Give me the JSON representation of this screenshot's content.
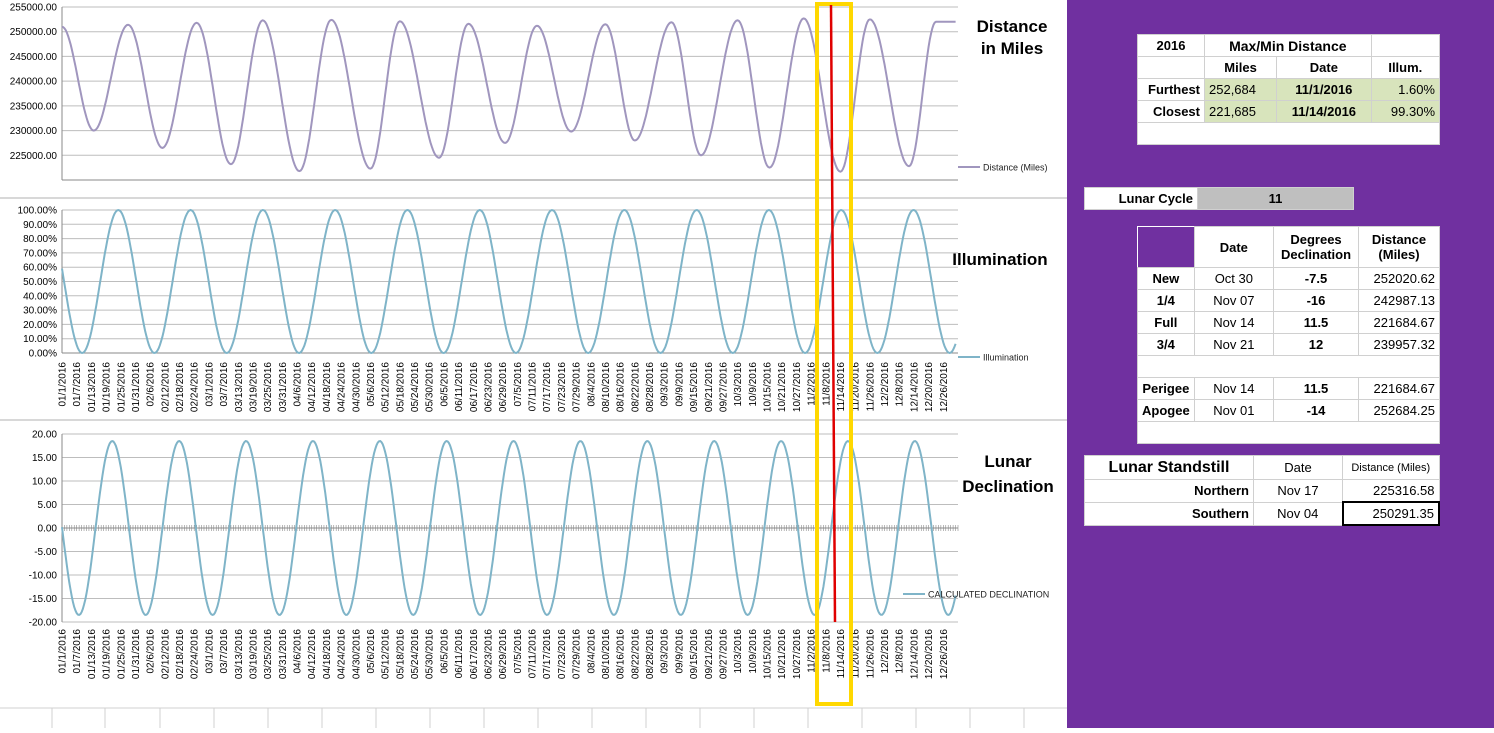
{
  "chart_data": [
    {
      "type": "line",
      "title": "Distance in Miles",
      "legend": "Distance (Miles)",
      "legend_position": "right",
      "ylim": [
        220000,
        255000
      ],
      "y_ticks": [
        "225000.00",
        "230000.00",
        "235000.00",
        "240000.00",
        "245000.00",
        "250000.00",
        "255000.00"
      ],
      "series": [
        {
          "name": "Distance (Miles)",
          "color": "#a096be",
          "period_days": 27.55,
          "x": [
            "01/1/2016",
            "01/14/2016",
            "01/28/2016",
            "02/11/2016",
            "02/25/2016",
            "03/10/2016",
            "03/23/2016",
            "04/7/2016",
            "04/20/2016",
            "05/6/2016",
            "05/18/2016",
            "06/3/2016",
            "06/15/2016",
            "06/30/2016",
            "07/13/2016",
            "07/27/2016",
            "08/10/2016",
            "08/22/2016",
            "09/6/2016",
            "09/18/2016",
            "10/3/2016",
            "10/16/2016",
            "10/30/2016",
            "11/14/2016",
            "11/26/2016",
            "12/12/2016",
            "12/23/2016"
          ],
          "values": [
            251000,
            230000,
            251400,
            226500,
            251800,
            223200,
            252300,
            221800,
            252400,
            222300,
            252100,
            224500,
            251600,
            227500,
            251200,
            229800,
            251500,
            228000,
            251900,
            225000,
            252300,
            222500,
            252684,
            221685,
            252500,
            222800,
            252000
          ]
        }
      ]
    },
    {
      "type": "line",
      "title": "Illumination",
      "legend": "Illumination",
      "legend_position": "right",
      "ylim": [
        0,
        1
      ],
      "y_ticks": [
        "0.00%",
        "10.00%",
        "20.00%",
        "30.00%",
        "40.00%",
        "50.00%",
        "60.00%",
        "70.00%",
        "80.00%",
        "90.00%",
        "100.00%"
      ],
      "series": [
        {
          "name": "Illumination",
          "color": "#7fb4c8",
          "period_days": 29.53,
          "full_moons": [
            "01/24/2016",
            "02/22/2016",
            "03/23/2016",
            "04/22/2016",
            "05/21/2016",
            "06/20/2016",
            "07/19/2016",
            "08/18/2016",
            "09/16/2016",
            "10/16/2016",
            "11/14/2016",
            "12/13/2016"
          ],
          "start_value": 0.6
        }
      ]
    },
    {
      "type": "line",
      "title": "Lunar Declination",
      "legend": "CALCULATED DECLINATION",
      "legend_position": "right",
      "ylim": [
        -20,
        20
      ],
      "y_ticks": [
        "-20.00",
        "-15.00",
        "-10.00",
        "-5.00",
        "0.00",
        "5.00",
        "10.00",
        "15.00",
        "20.00"
      ],
      "series": [
        {
          "name": "CALCULATED DECLINATION",
          "color": "#7fb4c8",
          "period_days": 27.32,
          "amplitude": 18.5,
          "start_value": 1.5
        }
      ]
    }
  ],
  "x_tick_labels": [
    "01/1/2016",
    "01/7/2016",
    "01/13/2016",
    "01/19/2016",
    "01/25/2016",
    "01/31/2016",
    "02/6/2016",
    "02/12/2016",
    "02/18/2016",
    "02/24/2016",
    "03/1/2016",
    "03/7/2016",
    "03/13/2016",
    "03/19/2016",
    "03/25/2016",
    "03/31/2016",
    "04/6/2016",
    "04/12/2016",
    "04/18/2016",
    "04/24/2016",
    "04/30/2016",
    "05/6/2016",
    "05/12/2016",
    "05/18/2016",
    "05/24/2016",
    "05/30/2016",
    "06/5/2016",
    "06/11/2016",
    "06/17/2016",
    "06/23/2016",
    "06/29/2016",
    "07/5/2016",
    "07/11/2016",
    "07/17/2016",
    "07/23/2016",
    "07/29/2016",
    "08/4/2016",
    "08/10/2016",
    "08/16/2016",
    "08/22/2016",
    "08/28/2016",
    "09/3/2016",
    "09/9/2016",
    "09/15/2016",
    "09/21/2016",
    "09/27/2016",
    "10/3/2016",
    "10/9/2016",
    "10/15/2016",
    "10/21/2016",
    "10/27/2016",
    "11/2/2016",
    "11/8/2016",
    "11/14/2016",
    "11/20/2016",
    "11/26/2016",
    "12/2/2016",
    "12/8/2016",
    "12/14/2016",
    "12/20/2016",
    "12/26/2016"
  ],
  "highlight": {
    "box_color": "#ffd800",
    "line_color": "#e00000",
    "from_date": "11/1/2016",
    "to_date": "11/14/2016"
  },
  "maxmin": {
    "year": "2016",
    "title": "Max/Min Distance",
    "headers": [
      "Miles",
      "Date",
      "Illum."
    ],
    "rows": [
      {
        "label": "Furthest",
        "miles": "252,684",
        "date": "11/1/2016",
        "illum": "1.60%"
      },
      {
        "label": "Closest",
        "miles": "221,685",
        "date": "11/14/2016",
        "illum": "99.30%"
      }
    ]
  },
  "lunar_cycle": {
    "label": "Lunar Cycle",
    "value": "11"
  },
  "phases": {
    "headers": [
      "Date",
      "Degrees Declination",
      "Distance (Miles)"
    ],
    "rows": [
      {
        "label": "New",
        "date": "Oct 30",
        "decl": "-7.5",
        "dist": "252020.62"
      },
      {
        "label": "1/4",
        "date": "Nov 07",
        "decl": "-16",
        "dist": "242987.13"
      },
      {
        "label": "Full",
        "date": "Nov 14",
        "decl": "11.5",
        "dist": "221684.67"
      },
      {
        "label": "3/4",
        "date": "Nov 21",
        "decl": "12",
        "dist": "239957.32"
      }
    ],
    "extremes": [
      {
        "label": "Perigee",
        "date": "Nov 14",
        "decl": "11.5",
        "dist": "221684.67"
      },
      {
        "label": "Apogee",
        "date": "Nov 01",
        "decl": "-14",
        "dist": "252684.25"
      }
    ]
  },
  "standstill": {
    "title": "Lunar Standstill",
    "headers": [
      "Date",
      "Distance (Miles)"
    ],
    "rows": [
      {
        "label": "Northern",
        "date": "Nov 17",
        "dist": "225316.58"
      },
      {
        "label": "Southern",
        "date": "Nov 04",
        "dist": "250291.35"
      }
    ]
  }
}
